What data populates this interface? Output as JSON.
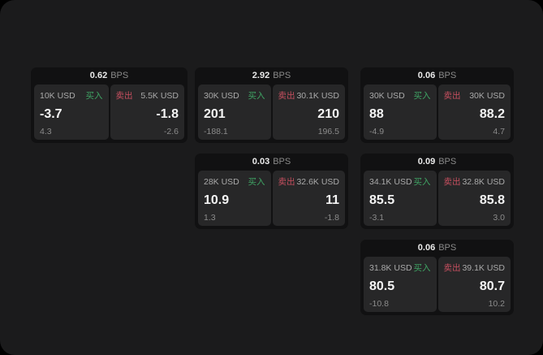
{
  "labels": {
    "buy": "买入",
    "sell": "卖出",
    "bps": "BPS"
  },
  "colors": {
    "page_bg": "#000000",
    "container_bg": "#1b1b1c",
    "card_bg": "#111112",
    "panel_bg": "#272728",
    "buy_green": "#3fa464",
    "sell_red": "#c64f5f",
    "value_white": "#f5f5f5",
    "muted_gray": "#8b8b8b"
  },
  "cards": [
    {
      "bps": "0.62",
      "buy": {
        "size": "10K USD",
        "value": "-3.7",
        "sub": "4.3"
      },
      "sell": {
        "size": "5.5K USD",
        "value": "-1.8",
        "sub": "-2.6"
      }
    },
    {
      "bps": "2.92",
      "buy": {
        "size": "30K USD",
        "value": "201",
        "sub": "-188.1"
      },
      "sell": {
        "size": "30.1K USD",
        "value": "210",
        "sub": "196.5"
      }
    },
    {
      "bps": "0.06",
      "buy": {
        "size": "30K USD",
        "value": "88",
        "sub": "-4.9"
      },
      "sell": {
        "size": "30K USD",
        "value": "88.2",
        "sub": "4.7"
      }
    },
    {
      "bps": "0.03",
      "buy": {
        "size": "28K USD",
        "value": "10.9",
        "sub": "1.3"
      },
      "sell": {
        "size": "32.6K USD",
        "value": "11",
        "sub": "-1.8"
      }
    },
    {
      "bps": "0.09",
      "buy": {
        "size": "34.1K USD",
        "value": "85.5",
        "sub": "-3.1"
      },
      "sell": {
        "size": "32.8K USD",
        "value": "85.8",
        "sub": "3.0"
      }
    },
    {
      "bps": "0.06",
      "buy": {
        "size": "31.8K USD",
        "value": "80.5",
        "sub": "-10.8"
      },
      "sell": {
        "size": "39.1K USD",
        "value": "80.7",
        "sub": "10.2"
      }
    }
  ]
}
